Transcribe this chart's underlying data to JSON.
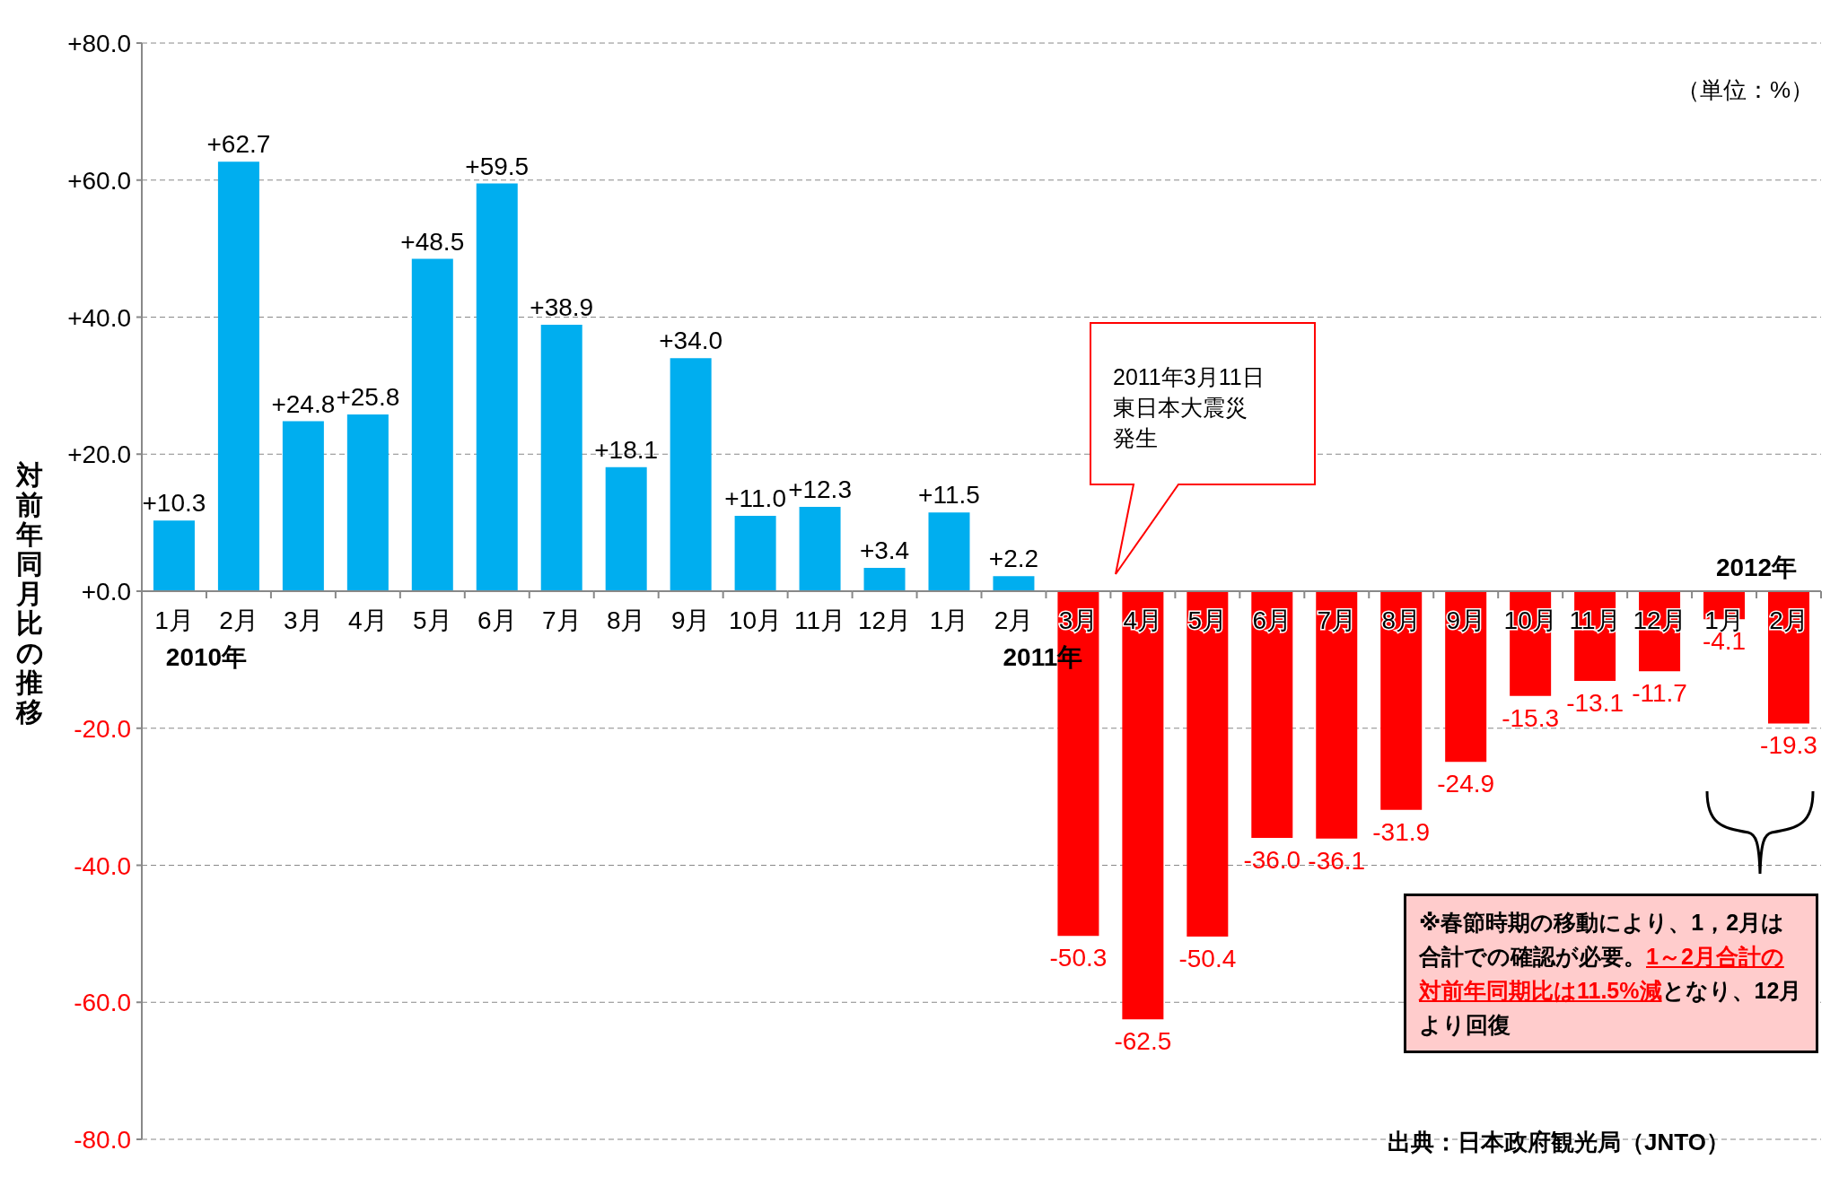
{
  "chart_data": {
    "type": "bar",
    "ylabel": "対前年同月比の推移",
    "categories": [
      "1月",
      "2月",
      "3月",
      "4月",
      "5月",
      "6月",
      "7月",
      "8月",
      "9月",
      "10月",
      "11月",
      "12月",
      "1月",
      "2月",
      "3月",
      "4月",
      "5月",
      "6月",
      "7月",
      "8月",
      "9月",
      "10月",
      "11月",
      "12月",
      "1月",
      "2月"
    ],
    "values": [
      10.3,
      62.7,
      24.8,
      25.8,
      48.5,
      59.5,
      38.9,
      18.1,
      34.0,
      11.0,
      12.3,
      3.4,
      11.5,
      2.2,
      -50.3,
      -62.5,
      -50.4,
      -36.0,
      -36.1,
      -31.9,
      -24.9,
      -15.3,
      -13.1,
      -11.7,
      -4.1,
      -19.3
    ],
    "colors": [
      "#00aeef",
      "#00aeef",
      "#00aeef",
      "#00aeef",
      "#00aeef",
      "#00aeef",
      "#00aeef",
      "#00aeef",
      "#00aeef",
      "#00aeef",
      "#00aeef",
      "#00aeef",
      "#00aeef",
      "#00aeef",
      "#ff0000",
      "#ff0000",
      "#ff0000",
      "#ff0000",
      "#ff0000",
      "#ff0000",
      "#ff0000",
      "#ff0000",
      "#ff0000",
      "#ff0000",
      "#ff0000",
      "#ff0000"
    ],
    "value_labels": [
      "+10.3",
      "+62.7",
      "+24.8",
      "+25.8",
      "+48.5",
      "+59.5",
      "+38.9",
      "+18.1",
      "+34.0",
      "+11.0",
      "+12.3",
      "+3.4",
      "+11.5",
      "+2.2",
      "-50.3",
      "-62.5",
      "-50.4",
      "-36.0",
      "-36.1",
      "-31.9",
      "-24.9",
      "-15.3",
      "-13.1",
      "-11.7",
      "-4.1",
      "-19.3"
    ],
    "ylim": [
      -80,
      80
    ],
    "yticks": [
      {
        "value": -80,
        "label": "-80.0"
      },
      {
        "value": -60,
        "label": "-60.0"
      },
      {
        "value": -40,
        "label": "-40.0"
      },
      {
        "value": -20,
        "label": "-20.0"
      },
      {
        "value": 0,
        "label": "+0.0"
      },
      {
        "value": 20,
        "label": "+20.0"
      },
      {
        "value": 40,
        "label": "+40.0"
      },
      {
        "value": 60,
        "label": "+60.0"
      },
      {
        "value": 80,
        "label": "+80.0"
      }
    ],
    "grid": "y",
    "legend": false,
    "annotations": [
      "（単位：%）",
      "2010年",
      "2011年",
      "2012年",
      "2011年3月11日",
      "東日本大震災",
      "発生",
      "※春節時期の移動により、1，2月は合計での確認が必要。",
      "1～2月合計の対前年同期比は11.5%減",
      "となり、12月より回復",
      "出典：日本政府観光局（JNTO）"
    ]
  }
}
